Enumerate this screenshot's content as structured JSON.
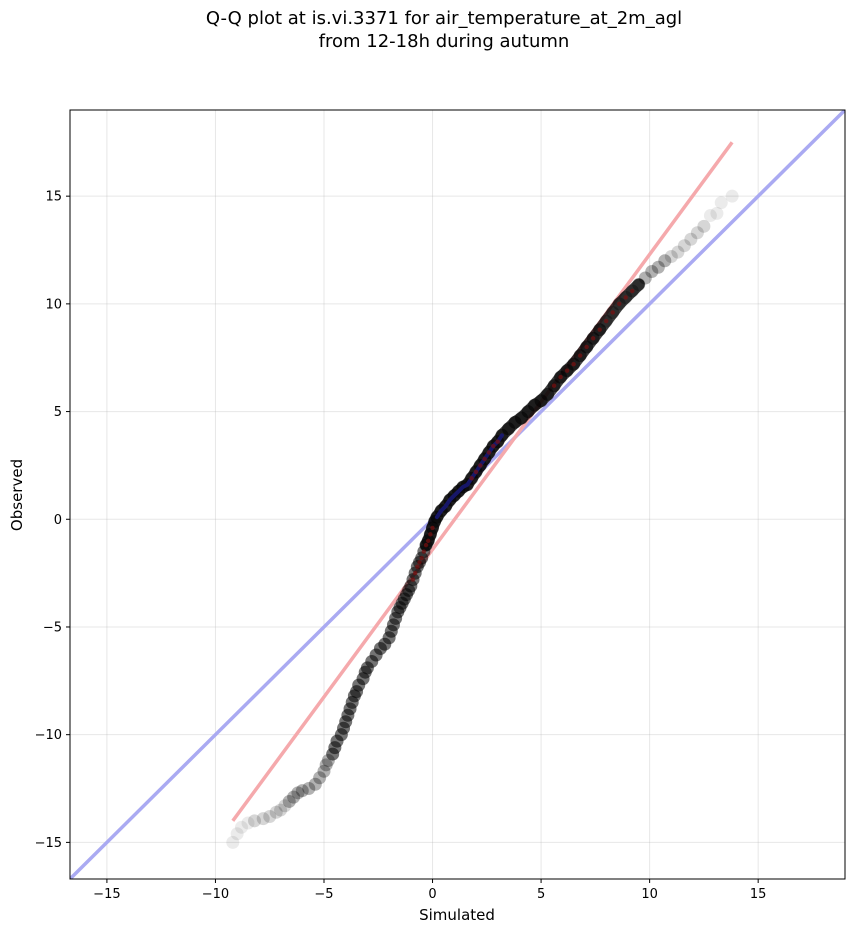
{
  "title_lines": [
    "Q-Q plot at is.vi.3371 for air_temperature_at_2m_agl",
    "from 12-18h during autumn"
  ],
  "chart_data": {
    "type": "scatter",
    "title": "Q-Q plot at is.vi.3371 for air_temperature_at_2m_agl from 12-18h during autumn",
    "xlabel": "Simulated",
    "ylabel": "Observed",
    "xlim": [
      -16.7,
      19.0
    ],
    "ylim": [
      -16.7,
      19.0
    ],
    "xticks": [
      -15,
      -10,
      -5,
      0,
      5,
      10,
      15
    ],
    "yticks": [
      -15,
      -10,
      -5,
      0,
      5,
      10,
      15
    ],
    "xtick_labels": [
      "−15",
      "−10",
      "−5",
      "0",
      "5",
      "10",
      "15"
    ],
    "ytick_labels": [
      "−15",
      "−10",
      "−5",
      "0",
      "5",
      "10",
      "15"
    ],
    "grid": true,
    "colors": {
      "points": "#000000",
      "identity_line": "#aaaaf2",
      "fit_line": "#f5a9ac",
      "dense_dark_blue": "#1a1a80",
      "dense_dark_red": "#7a1010"
    },
    "identity_line": {
      "x": [
        -16.7,
        19.0
      ],
      "y": [
        -16.7,
        19.0
      ]
    },
    "fit_line": {
      "x": [
        -9.2,
        13.8
      ],
      "y": [
        -14.0,
        17.5
      ]
    },
    "quantile_points": [
      [
        -9.2,
        -15.0
      ],
      [
        -9.0,
        -14.6
      ],
      [
        -8.8,
        -14.3
      ],
      [
        -8.5,
        -14.1
      ],
      [
        -8.2,
        -14.0
      ],
      [
        -7.8,
        -13.9
      ],
      [
        -7.5,
        -13.8
      ],
      [
        -7.2,
        -13.6
      ],
      [
        -7.0,
        -13.5
      ],
      [
        -6.8,
        -13.3
      ],
      [
        -6.6,
        -13.1
      ],
      [
        -6.4,
        -12.9
      ],
      [
        -6.2,
        -12.7
      ],
      [
        -6.0,
        -12.6
      ],
      [
        -5.7,
        -12.5
      ],
      [
        -5.4,
        -12.3
      ],
      [
        -5.2,
        -12.0
      ],
      [
        -5.0,
        -11.7
      ],
      [
        -4.9,
        -11.4
      ],
      [
        -4.8,
        -11.2
      ],
      [
        -4.6,
        -10.9
      ],
      [
        -4.5,
        -10.6
      ],
      [
        -4.4,
        -10.3
      ],
      [
        -4.2,
        -10.0
      ],
      [
        -4.1,
        -9.7
      ],
      [
        -4.0,
        -9.4
      ],
      [
        -3.9,
        -9.1
      ],
      [
        -3.8,
        -8.8
      ],
      [
        -3.7,
        -8.5
      ],
      [
        -3.6,
        -8.2
      ],
      [
        -3.5,
        -8.0
      ],
      [
        -3.4,
        -7.7
      ],
      [
        -3.2,
        -7.4
      ],
      [
        -3.1,
        -7.1
      ],
      [
        -3.0,
        -6.9
      ],
      [
        -2.8,
        -6.6
      ],
      [
        -2.6,
        -6.3
      ],
      [
        -2.4,
        -6.0
      ],
      [
        -2.2,
        -5.8
      ],
      [
        -2.0,
        -5.5
      ],
      [
        -1.9,
        -5.2
      ],
      [
        -1.8,
        -4.9
      ],
      [
        -1.7,
        -4.6
      ],
      [
        -1.6,
        -4.3
      ],
      [
        -1.5,
        -4.1
      ],
      [
        -1.4,
        -3.9
      ],
      [
        -1.3,
        -3.7
      ],
      [
        -1.2,
        -3.5
      ],
      [
        -1.1,
        -3.3
      ],
      [
        -1.0,
        -3.1
      ],
      [
        -0.9,
        -2.8
      ],
      [
        -0.8,
        -2.5
      ],
      [
        -0.7,
        -2.2
      ],
      [
        -0.6,
        -2.0
      ],
      [
        -0.5,
        -1.8
      ],
      [
        -0.4,
        -1.5
      ],
      [
        -0.3,
        -1.2
      ],
      [
        -0.2,
        -1.0
      ],
      [
        -0.1,
        -0.7
      ],
      [
        0.0,
        -0.4
      ],
      [
        0.1,
        -0.1
      ],
      [
        0.2,
        0.1
      ],
      [
        0.4,
        0.4
      ],
      [
        0.6,
        0.6
      ],
      [
        0.8,
        0.9
      ],
      [
        1.0,
        1.1
      ],
      [
        1.2,
        1.3
      ],
      [
        1.4,
        1.5
      ],
      [
        1.6,
        1.6
      ],
      [
        1.8,
        1.9
      ],
      [
        2.0,
        2.2
      ],
      [
        2.2,
        2.5
      ],
      [
        2.4,
        2.8
      ],
      [
        2.6,
        3.1
      ],
      [
        2.8,
        3.4
      ],
      [
        3.0,
        3.6
      ],
      [
        3.2,
        3.9
      ],
      [
        3.5,
        4.2
      ],
      [
        3.8,
        4.5
      ],
      [
        4.1,
        4.7
      ],
      [
        4.4,
        5.0
      ],
      [
        4.7,
        5.3
      ],
      [
        5.0,
        5.5
      ],
      [
        5.3,
        5.8
      ],
      [
        5.6,
        6.2
      ],
      [
        5.9,
        6.6
      ],
      [
        6.2,
        6.9
      ],
      [
        6.5,
        7.2
      ],
      [
        6.8,
        7.6
      ],
      [
        7.1,
        8.0
      ],
      [
        7.4,
        8.4
      ],
      [
        7.7,
        8.8
      ],
      [
        8.0,
        9.2
      ],
      [
        8.3,
        9.6
      ],
      [
        8.6,
        10.0
      ],
      [
        8.9,
        10.3
      ],
      [
        9.2,
        10.6
      ],
      [
        9.5,
        10.9
      ],
      [
        9.8,
        11.2
      ],
      [
        10.1,
        11.5
      ],
      [
        10.4,
        11.7
      ],
      [
        10.7,
        12.0
      ],
      [
        11.0,
        12.2
      ],
      [
        11.3,
        12.4
      ],
      [
        11.6,
        12.7
      ],
      [
        11.9,
        13.0
      ],
      [
        12.2,
        13.3
      ],
      [
        12.5,
        13.6
      ],
      [
        12.8,
        14.1
      ],
      [
        13.1,
        14.2
      ],
      [
        13.3,
        14.7
      ],
      [
        13.8,
        15.0
      ]
    ]
  }
}
